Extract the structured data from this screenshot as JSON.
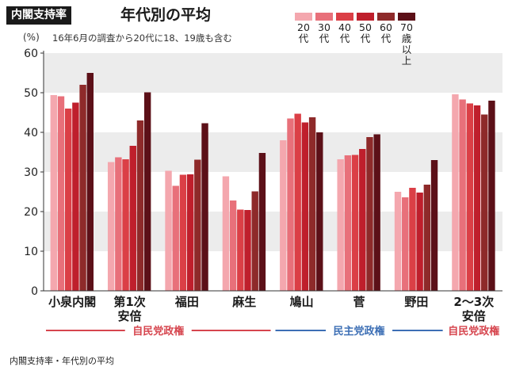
{
  "header": {
    "tag": "内閣支持率",
    "title": "年代別の平均",
    "unit": "(%)",
    "subtitle": "16年6月の調査から20代に18、19歳も含む"
  },
  "caption": "内閣支持率・年代別の平均",
  "chart_data": {
    "type": "bar",
    "categories": [
      "小泉内閣",
      "第1次\n安倍",
      "福田",
      "麻生",
      "鳩山",
      "菅",
      "野田",
      "2〜3次\n安倍"
    ],
    "series": [
      {
        "name": "20代",
        "color": "#f4a7ae",
        "values": [
          49.4,
          32.5,
          30.3,
          28.9,
          38.0,
          33.2,
          25.0,
          49.6
        ]
      },
      {
        "name": "30代",
        "color": "#e8707a",
        "values": [
          49.1,
          33.7,
          26.5,
          22.8,
          43.5,
          34.2,
          23.6,
          48.3
        ]
      },
      {
        "name": "40代",
        "color": "#db3f46",
        "values": [
          46.0,
          33.2,
          29.3,
          20.5,
          44.7,
          34.3,
          26.0,
          47.3
        ]
      },
      {
        "name": "50代",
        "color": "#bf1f2c",
        "values": [
          47.5,
          36.6,
          29.4,
          20.4,
          42.5,
          35.8,
          24.8,
          46.8
        ]
      },
      {
        "name": "60代",
        "color": "#8e2a2a",
        "values": [
          52.0,
          43.0,
          33.1,
          25.1,
          43.8,
          38.8,
          26.8,
          44.5
        ]
      },
      {
        "name": "70歳以上",
        "color": "#5c1018",
        "values": [
          55.0,
          50.1,
          42.3,
          34.8,
          40.0,
          39.5,
          33.0,
          48.0
        ]
      }
    ],
    "ylim": [
      0,
      60
    ],
    "yticks": [
      0,
      10,
      20,
      30,
      40,
      50,
      60
    ],
    "groups": [
      {
        "label": "自民党政権",
        "color": "#d6454e",
        "from": 0,
        "to": 3
      },
      {
        "label": "民主党政権",
        "color": "#3d6fb5",
        "from": 4,
        "to": 6
      },
      {
        "label": "自民党政権",
        "color": "#d6454e",
        "from": 7,
        "to": 7
      }
    ]
  }
}
